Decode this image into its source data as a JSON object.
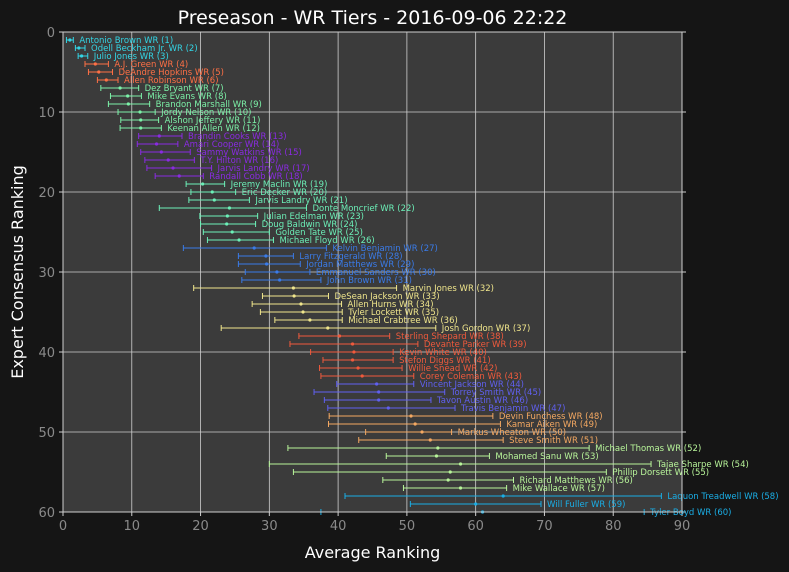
{
  "chart_data": {
    "type": "scatter",
    "title": "Preseason - WR Tiers - 2016-09-06 22:22",
    "xlabel": "Average Ranking",
    "ylabel": "Expert Consensus Ranking",
    "xlim": [
      0,
      90
    ],
    "ylim": [
      60,
      0
    ],
    "xticks": [
      "0",
      "10",
      "20",
      "30",
      "40",
      "50",
      "60",
      "70",
      "80",
      "90"
    ],
    "yticks": [
      "0",
      "10",
      "20",
      "30",
      "40",
      "50",
      "60"
    ],
    "grid": true,
    "tier_colors": [
      "#33d6e6",
      "#ff7045",
      "#7cf2a8",
      "#8a2be2",
      "#6cf0b8",
      "#3a7be8",
      "#f0e68c",
      "#f05a3c",
      "#6060f0",
      "#f5a962",
      "#b8f59a",
      "#1aaee6"
    ],
    "points": [
      {
        "rank": 1,
        "label": "Antonio Brown WR (1)",
        "avg": 1.0,
        "lo": 0.5,
        "hi": 1.5,
        "tier": 0
      },
      {
        "rank": 2,
        "label": "Odell Beckham Jr. WR (2)",
        "avg": 2.3,
        "lo": 1.8,
        "hi": 3.2,
        "tier": 0
      },
      {
        "rank": 3,
        "label": "Julio Jones WR (3)",
        "avg": 2.7,
        "lo": 2.2,
        "hi": 3.6,
        "tier": 0
      },
      {
        "rank": 4,
        "label": "A.J. Green WR (4)",
        "avg": 4.7,
        "lo": 3.2,
        "hi": 6.6,
        "tier": 1
      },
      {
        "rank": 5,
        "label": "DeAndre Hopkins WR (5)",
        "avg": 5.2,
        "lo": 3.7,
        "hi": 7.2,
        "tier": 1
      },
      {
        "rank": 6,
        "label": "Allen Robinson WR (6)",
        "avg": 6.3,
        "lo": 5.0,
        "hi": 8.0,
        "tier": 1
      },
      {
        "rank": 7,
        "label": "Dez Bryant WR (7)",
        "avg": 8.3,
        "lo": 5.5,
        "hi": 11.0,
        "tier": 2
      },
      {
        "rank": 8,
        "label": "Mike Evans WR (8)",
        "avg": 9.4,
        "lo": 6.9,
        "hi": 11.4,
        "tier": 2
      },
      {
        "rank": 9,
        "label": "Brandon Marshall WR (9)",
        "avg": 9.5,
        "lo": 6.6,
        "hi": 12.6,
        "tier": 2
      },
      {
        "rank": 10,
        "label": "Jordy Nelson WR (10)",
        "avg": 11.2,
        "lo": 8.0,
        "hi": 13.4,
        "tier": 2
      },
      {
        "rank": 11,
        "label": "Alshon Jeffery WR (11)",
        "avg": 11.3,
        "lo": 8.4,
        "hi": 13.9,
        "tier": 2
      },
      {
        "rank": 12,
        "label": "Keenan Allen WR (12)",
        "avg": 11.3,
        "lo": 8.3,
        "hi": 14.3,
        "tier": 2
      },
      {
        "rank": 13,
        "label": "Brandin Cooks WR (13)",
        "avg": 14.0,
        "lo": 11.0,
        "hi": 17.3,
        "tier": 3
      },
      {
        "rank": 14,
        "label": "Amari Cooper WR (14)",
        "avg": 13.6,
        "lo": 10.8,
        "hi": 16.7,
        "tier": 3
      },
      {
        "rank": 15,
        "label": "Sammy Watkins WR (15)",
        "avg": 14.3,
        "lo": 11.3,
        "hi": 18.5,
        "tier": 3
      },
      {
        "rank": 16,
        "label": "T.Y. Hilton WR (16)",
        "avg": 15.3,
        "lo": 11.9,
        "hi": 19.1,
        "tier": 3
      },
      {
        "rank": 17,
        "label": "Jarvis Landry WR (17)",
        "avg": 16.0,
        "lo": 12.2,
        "hi": 21.6,
        "tier": 3
      },
      {
        "rank": 18,
        "label": "Randall Cobb WR (18)",
        "avg": 16.9,
        "lo": 13.4,
        "hi": 20.4,
        "tier": 3
      },
      {
        "rank": 19,
        "label": "Jeremy Maclin WR (19)",
        "avg": 20.3,
        "lo": 17.9,
        "hi": 23.5,
        "tier": 4
      },
      {
        "rank": 20,
        "label": "Eric Decker WR (20)",
        "avg": 21.7,
        "lo": 18.6,
        "hi": 25.1,
        "tier": 4
      },
      {
        "rank": 21,
        "label": "Jarvis Landry WR (21)",
        "avg": 22.0,
        "lo": 18.3,
        "hi": 27.1,
        "tier": 4
      },
      {
        "rank": 22,
        "label": "Donte Moncrief WR (22)",
        "avg": 24.2,
        "lo": 14.0,
        "hi": 35.4,
        "tier": 4
      },
      {
        "rank": 23,
        "label": "Julian Edelman WR (23)",
        "avg": 23.9,
        "lo": 19.9,
        "hi": 28.3,
        "tier": 4
      },
      {
        "rank": 24,
        "label": "Doug Baldwin WR (24)",
        "avg": 23.8,
        "lo": 20.0,
        "hi": 28.0,
        "tier": 4
      },
      {
        "rank": 25,
        "label": "Golden Tate WR (25)",
        "avg": 24.6,
        "lo": 20.4,
        "hi": 30.0,
        "tier": 4
      },
      {
        "rank": 26,
        "label": "Michael Floyd WR (26)",
        "avg": 25.6,
        "lo": 21.0,
        "hi": 30.6,
        "tier": 4
      },
      {
        "rank": 27,
        "label": "Kelvin Benjamin WR (27)",
        "avg": 27.8,
        "lo": 17.5,
        "hi": 38.3,
        "tier": 5
      },
      {
        "rank": 28,
        "label": "Larry Fitzgerald WR (28)",
        "avg": 29.5,
        "lo": 25.5,
        "hi": 33.5,
        "tier": 5
      },
      {
        "rank": 29,
        "label": "Jordan Matthews WR (29)",
        "avg": 29.6,
        "lo": 25.5,
        "hi": 34.5,
        "tier": 5
      },
      {
        "rank": 30,
        "label": "Emmanuel Sanders WR (30)",
        "avg": 31.1,
        "lo": 26.5,
        "hi": 35.9,
        "tier": 5
      },
      {
        "rank": 31,
        "label": "John Brown WR (31)",
        "avg": 31.5,
        "lo": 26.0,
        "hi": 37.5,
        "tier": 5
      },
      {
        "rank": 32,
        "label": "Marvin Jones WR (32)",
        "avg": 33.5,
        "lo": 19.0,
        "hi": 48.5,
        "tier": 6
      },
      {
        "rank": 33,
        "label": "DeSean Jackson WR (33)",
        "avg": 33.6,
        "lo": 29.0,
        "hi": 38.6,
        "tier": 6
      },
      {
        "rank": 34,
        "label": "Allen Hurns WR (34)",
        "avg": 34.6,
        "lo": 27.5,
        "hi": 40.5,
        "tier": 6
      },
      {
        "rank": 35,
        "label": "Tyler Lockett WR (35)",
        "avg": 34.9,
        "lo": 28.7,
        "hi": 40.6,
        "tier": 6
      },
      {
        "rank": 36,
        "label": "Michael Crabtree WR (36)",
        "avg": 35.9,
        "lo": 30.8,
        "hi": 40.6,
        "tier": 6
      },
      {
        "rank": 37,
        "label": "Josh Gordon WR (37)",
        "avg": 38.5,
        "lo": 23.0,
        "hi": 54.2,
        "tier": 6
      },
      {
        "rank": 38,
        "label": "Sterling Shepard WR (38)",
        "avg": 40.2,
        "lo": 34.3,
        "hi": 47.5,
        "tier": 7
      },
      {
        "rank": 39,
        "label": "Devante Parker WR (39)",
        "avg": 42.1,
        "lo": 33.0,
        "hi": 51.6,
        "tier": 7
      },
      {
        "rank": 40,
        "label": "Kevin White WR (40)",
        "avg": 42.3,
        "lo": 36.0,
        "hi": 48.0,
        "tier": 7
      },
      {
        "rank": 41,
        "label": "Stefon Diggs WR (41)",
        "avg": 42.1,
        "lo": 37.8,
        "hi": 48.0,
        "tier": 7
      },
      {
        "rank": 42,
        "label": "Willie Snead WR (42)",
        "avg": 42.9,
        "lo": 37.3,
        "hi": 49.3,
        "tier": 7
      },
      {
        "rank": 43,
        "label": "Corey Coleman WR (43)",
        "avg": 43.5,
        "lo": 37.5,
        "hi": 51.0,
        "tier": 7
      },
      {
        "rank": 44,
        "label": "Vincent Jackson WR (44)",
        "avg": 45.6,
        "lo": 39.8,
        "hi": 51.0,
        "tier": 8
      },
      {
        "rank": 45,
        "label": "Torrey Smith WR (45)",
        "avg": 45.9,
        "lo": 36.5,
        "hi": 55.5,
        "tier": 8
      },
      {
        "rank": 46,
        "label": "Tavon Austin WR (46)",
        "avg": 45.9,
        "lo": 38.0,
        "hi": 53.5,
        "tier": 8
      },
      {
        "rank": 47,
        "label": "Travis Benjamin WR (47)",
        "avg": 47.3,
        "lo": 38.5,
        "hi": 57.0,
        "tier": 8
      },
      {
        "rank": 48,
        "label": "Devin Funchess WR (48)",
        "avg": 50.6,
        "lo": 38.7,
        "hi": 62.5,
        "tier": 9
      },
      {
        "rank": 49,
        "label": "Kamar Aiken WR (49)",
        "avg": 51.2,
        "lo": 38.6,
        "hi": 63.6,
        "tier": 9
      },
      {
        "rank": 50,
        "label": "Markus Wheaton WR (50)",
        "avg": 52.2,
        "lo": 44.0,
        "hi": 56.5,
        "tier": 9
      },
      {
        "rank": 51,
        "label": "Steve Smith WR (51)",
        "avg": 53.4,
        "lo": 43.0,
        "hi": 64.0,
        "tier": 9
      },
      {
        "rank": 52,
        "label": "Michael Thomas WR (52)",
        "avg": 54.5,
        "lo": 32.7,
        "hi": 76.5,
        "tier": 10
      },
      {
        "rank": 53,
        "label": "Mohamed Sanu WR (53)",
        "avg": 54.3,
        "lo": 47.0,
        "hi": 62.0,
        "tier": 10
      },
      {
        "rank": 54,
        "label": "Tajae Sharpe WR (54)",
        "avg": 57.8,
        "lo": 30.0,
        "hi": 85.5,
        "tier": 10
      },
      {
        "rank": 55,
        "label": "Phillip Dorsett WR (55)",
        "avg": 56.3,
        "lo": 33.5,
        "hi": 79.0,
        "tier": 10
      },
      {
        "rank": 56,
        "label": "Richard Matthews WR (56)",
        "avg": 56.0,
        "lo": 46.5,
        "hi": 65.5,
        "tier": 10
      },
      {
        "rank": 57,
        "label": "Mike Wallace WR (57)",
        "avg": 57.8,
        "lo": 49.5,
        "hi": 64.5,
        "tier": 10
      },
      {
        "rank": 58,
        "label": "Laquon Treadwell WR (58)",
        "avg": 64.0,
        "lo": 41.0,
        "hi": 87.0,
        "tier": 11
      },
      {
        "rank": 59,
        "label": "Will Fuller WR (59)",
        "avg": 60.0,
        "lo": 50.5,
        "hi": 69.5,
        "tier": 11
      },
      {
        "rank": 60,
        "label": "Tyler Boyd WR (60)",
        "avg": 61.0,
        "lo": 37.5,
        "hi": 84.5,
        "tier": 11
      }
    ]
  }
}
